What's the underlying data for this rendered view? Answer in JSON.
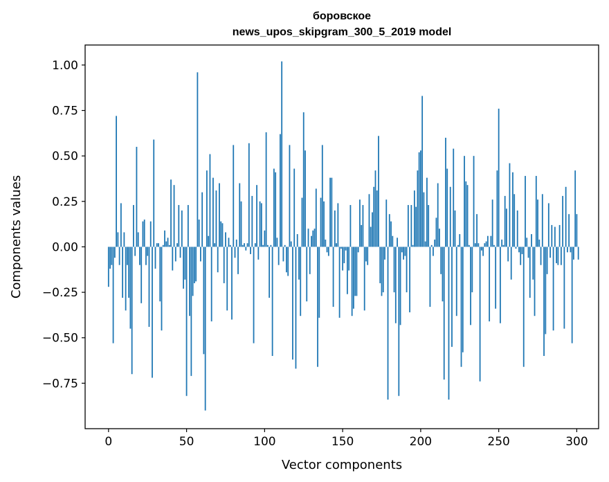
{
  "chart_data": {
    "type": "bar",
    "title_line1": "боровское",
    "title_line2": "news_upos_skipgram_300_5_2019 model",
    "xlabel": "Vector components",
    "ylabel": "Components values",
    "xlim": [
      -15,
      314
    ],
    "ylim": [
      -1.0,
      1.11
    ],
    "xticks": [
      0,
      50,
      100,
      150,
      200,
      250,
      300
    ],
    "yticks": [
      -0.75,
      -0.5,
      -0.25,
      0.0,
      0.25,
      0.5,
      0.75,
      1.0
    ],
    "xtick_labels": [
      "0",
      "50",
      "100",
      "150",
      "200",
      "250",
      "300"
    ],
    "ytick_labels": [
      "−0.75",
      "−0.50",
      "−0.25",
      "0.00",
      "0.25",
      "0.50",
      "0.75",
      "1.00"
    ],
    "bar_color": "#1f77b4",
    "values": [
      -0.22,
      -0.12,
      -0.1,
      -0.53,
      -0.06,
      0.72,
      0.08,
      -0.1,
      0.24,
      -0.28,
      0.08,
      -0.35,
      -0.1,
      -0.28,
      -0.45,
      -0.7,
      0.23,
      -0.05,
      0.55,
      0.08,
      -0.1,
      -0.31,
      0.14,
      0.15,
      -0.1,
      -0.05,
      -0.44,
      0.14,
      -0.72,
      0.59,
      -0.12,
      0.02,
      0.02,
      -0.3,
      -0.46,
      0.01,
      0.09,
      0.03,
      0.05,
      0.01,
      0.37,
      -0.13,
      0.34,
      -0.08,
      0.02,
      0.23,
      -0.06,
      0.2,
      -0.23,
      -0.18,
      -0.82,
      0.23,
      -0.38,
      -0.71,
      -0.27,
      -0.2,
      -0.19,
      0.96,
      0.15,
      -0.08,
      0.3,
      -0.59,
      -0.9,
      0.42,
      0.06,
      0.51,
      -0.41,
      0.38,
      0.02,
      0.31,
      -0.14,
      0.35,
      0.14,
      0.13,
      -0.2,
      0.08,
      -0.35,
      0.05,
      0.01,
      -0.4,
      0.56,
      -0.06,
      0.04,
      -0.15,
      0.35,
      0.25,
      0.01,
      0.02,
      -0.02,
      0.02,
      0.57,
      -0.04,
      0.28,
      -0.53,
      0.02,
      0.34,
      -0.07,
      0.25,
      0.24,
      0.01,
      0.09,
      0.63,
      0.01,
      -0.28,
      0.01,
      -0.6,
      0.43,
      0.41,
      0.05,
      -0.1,
      0.62,
      1.02,
      -0.08,
      0.01,
      -0.14,
      -0.16,
      0.56,
      0.03,
      -0.62,
      0.43,
      -0.67,
      0.07,
      -0.18,
      -0.38,
      0.27,
      0.74,
      0.53,
      -0.3,
      0.1,
      -0.15,
      0.06,
      0.09,
      0.1,
      0.32,
      -0.66,
      -0.39,
      0.27,
      0.56,
      0.25,
      0.04,
      -0.03,
      -0.05,
      0.38,
      0.38,
      -0.33,
      0.2,
      0.02,
      0.24,
      -0.39,
      -0.01,
      -0.13,
      -0.09,
      -0.02,
      -0.26,
      -0.13,
      0.23,
      -0.38,
      -0.34,
      -0.27,
      -0.27,
      -0.03,
      0.26,
      0.12,
      0.23,
      -0.35,
      -0.08,
      -0.1,
      0.29,
      0.11,
      0.19,
      0.33,
      0.42,
      0.31,
      0.61,
      -0.2,
      -0.27,
      -0.25,
      -0.07,
      0.26,
      -0.84,
      0.18,
      0.14,
      0.06,
      -0.25,
      -0.42,
      0.05,
      -0.82,
      -0.43,
      -0.03,
      -0.07,
      -0.05,
      -0.25,
      0.23,
      -0.36,
      0.23,
      0.01,
      0.31,
      0.22,
      0.42,
      0.52,
      0.53,
      0.83,
      0.3,
      0.03,
      0.38,
      0.23,
      -0.33,
      0.01,
      -0.05,
      0.04,
      0.16,
      0.35,
      0.1,
      -0.15,
      -0.3,
      -0.73,
      0.6,
      0.43,
      -0.84,
      0.33,
      -0.55,
      0.54,
      0.2,
      -0.38,
      0.01,
      0.07,
      -0.66,
      -0.58,
      0.5,
      0.36,
      0.34,
      0.01,
      -0.43,
      -0.25,
      0.5,
      0.02,
      0.18,
      0.02,
      -0.74,
      -0.02,
      -0.05,
      0.02,
      0.03,
      0.06,
      -0.41,
      0.06,
      0.26,
      0.01,
      -0.34,
      0.42,
      0.76,
      -0.42,
      0.04,
      0.01,
      0.28,
      0.21,
      -0.08,
      0.46,
      -0.18,
      0.41,
      0.29,
      -0.01,
      0.2,
      -0.03,
      -0.1,
      -0.04,
      -0.66,
      0.39,
      0.05,
      -0.06,
      -0.28,
      0.07,
      -0.18,
      -0.38,
      0.39,
      0.26,
      0.04,
      -0.1,
      0.29,
      -0.6,
      -0.48,
      -0.15,
      0.24,
      -0.06,
      0.12,
      -0.46,
      0.11,
      -0.09,
      -0.1,
      0.12,
      -0.1,
      0.28,
      -0.45,
      0.33,
      -0.03,
      0.18,
      -0.03,
      -0.53,
      -0.07,
      0.42,
      0.18,
      -0.07
    ]
  }
}
